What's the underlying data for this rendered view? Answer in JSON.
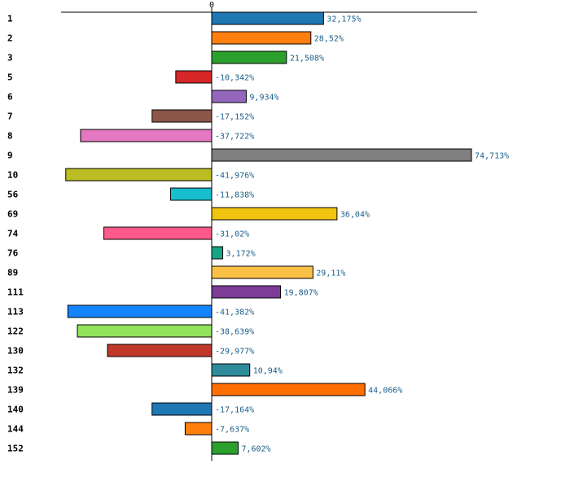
{
  "chart_data": {
    "type": "bar",
    "orientation": "horizontal",
    "title": "",
    "xlabel": "",
    "ylabel": "",
    "zero_tick_label": "0",
    "xlim": [
      -42,
      75
    ],
    "grid": false,
    "categories": [
      "1",
      "2",
      "3",
      "5",
      "6",
      "7",
      "8",
      "9",
      "10",
      "56",
      "69",
      "74",
      "76",
      "89",
      "111",
      "113",
      "122",
      "130",
      "132",
      "139",
      "140",
      "144",
      "152"
    ],
    "values": [
      32.175,
      28.52,
      21.508,
      -10.342,
      9.934,
      -17.152,
      -37.722,
      74.713,
      -41.976,
      -11.838,
      36.04,
      -31.02,
      3.172,
      29.11,
      19.807,
      -41.382,
      -38.639,
      -29.977,
      10.94,
      44.066,
      -17.164,
      -7.637,
      7.602
    ],
    "value_labels": [
      "32,175%",
      "28,52%",
      "21,508%",
      "-10,342%",
      "9,934%",
      "-17,152%",
      "-37,722%",
      "74,713%",
      "-41,976%",
      "-11,838%",
      "36,04%",
      "-31,02%",
      "3,172%",
      "29,11%",
      "19,807%",
      "-41,382%",
      "-38,639%",
      "-29,977%",
      "10,94%",
      "44,066%",
      "-17,164%",
      "-7,637%",
      "7,602%"
    ],
    "colors": [
      "#1f77b4",
      "#ff7f0e",
      "#2ca02c",
      "#d62728",
      "#9467bd",
      "#8c564b",
      "#e377c2",
      "#7f7f7f",
      "#bcbd22",
      "#17becf",
      "#f1c40f",
      "#ff5a8a",
      "#17a589",
      "#fbc046",
      "#7d3c98",
      "#1485ff",
      "#90e35a",
      "#c0392b",
      "#2e8b9a",
      "#ff6f00",
      "#1f77b4",
      "#ff7f0e",
      "#2ca02c"
    ]
  }
}
